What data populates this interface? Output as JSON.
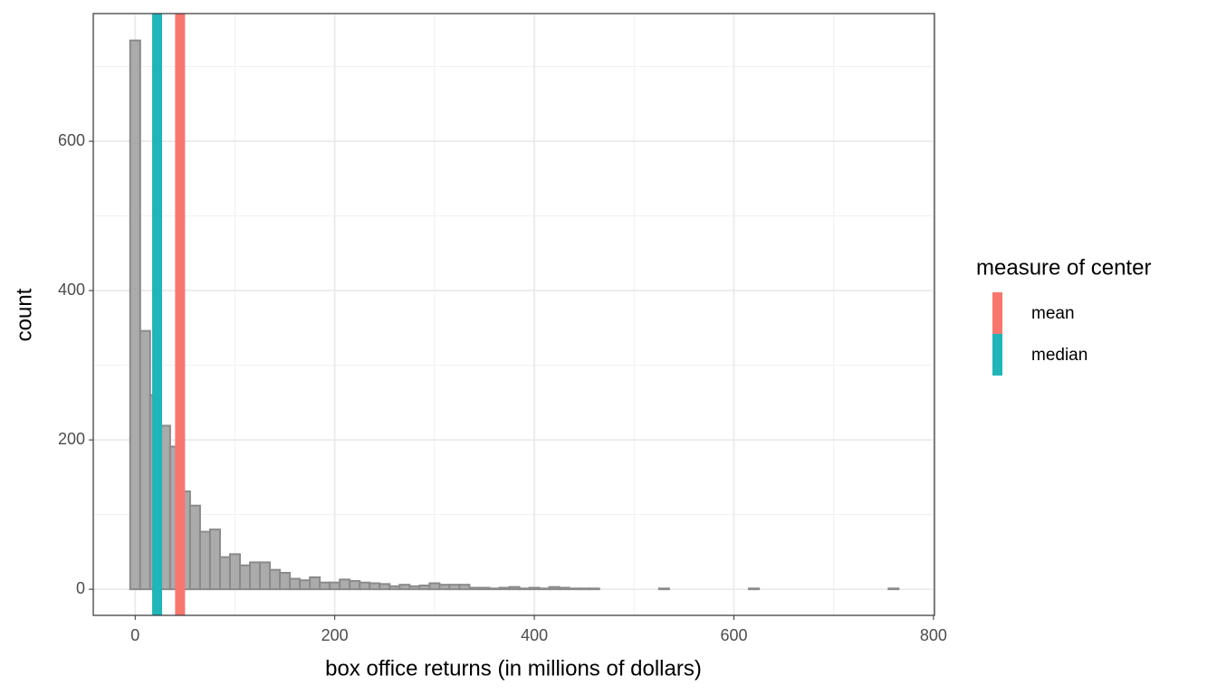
{
  "chart_data": {
    "type": "histogram",
    "x_label": "box office returns (in millions of dollars)",
    "y_label": "count",
    "bins": [
      -5,
      5,
      15,
      25,
      35,
      45,
      55,
      65,
      75,
      85,
      95,
      105,
      115,
      125,
      135,
      145,
      155,
      165,
      175,
      185,
      195,
      205,
      215,
      225,
      235,
      245,
      255,
      265,
      275,
      285,
      295,
      305,
      315,
      325,
      335,
      345,
      355,
      365,
      375,
      385,
      395,
      405,
      415,
      425,
      435,
      445,
      455,
      465,
      475,
      485,
      495,
      505,
      515,
      525,
      535,
      545,
      555,
      565,
      575,
      585,
      595,
      605,
      615,
      625,
      635,
      645,
      655,
      665,
      675,
      685,
      695,
      705,
      715,
      725,
      735,
      745,
      755,
      765
    ],
    "counts": [
      735,
      346,
      260,
      219,
      191,
      131,
      112,
      77,
      80,
      43,
      47,
      32,
      36,
      36,
      26,
      22,
      14,
      12,
      16,
      9,
      9,
      13,
      11,
      9,
      8,
      7,
      4,
      6,
      4,
      5,
      8,
      6,
      6,
      6,
      2,
      2,
      1,
      2,
      3,
      1,
      2,
      1,
      3,
      2,
      1,
      1,
      1,
      0,
      0,
      0,
      0,
      0,
      0,
      1,
      0,
      0,
      0,
      0,
      0,
      0,
      0,
      0,
      1,
      0,
      0,
      0,
      0,
      0,
      0,
      0,
      0,
      0,
      0,
      0,
      0,
      0,
      1
    ],
    "fill": "#ababab",
    "edge_color": "#8a8a8a",
    "legend_title": "measure of center",
    "vlines": [
      {
        "name": "mean",
        "color": "#F8766D",
        "value": 45
      },
      {
        "name": "median",
        "color": "#1FB5B9",
        "value": 22
      }
    ],
    "xlim": [
      -42,
      801
    ],
    "ylim": [
      -35,
      771
    ],
    "xticks": [
      0,
      200,
      400,
      600,
      800
    ],
    "yticks": [
      0,
      200,
      400,
      600
    ],
    "grid": true
  }
}
